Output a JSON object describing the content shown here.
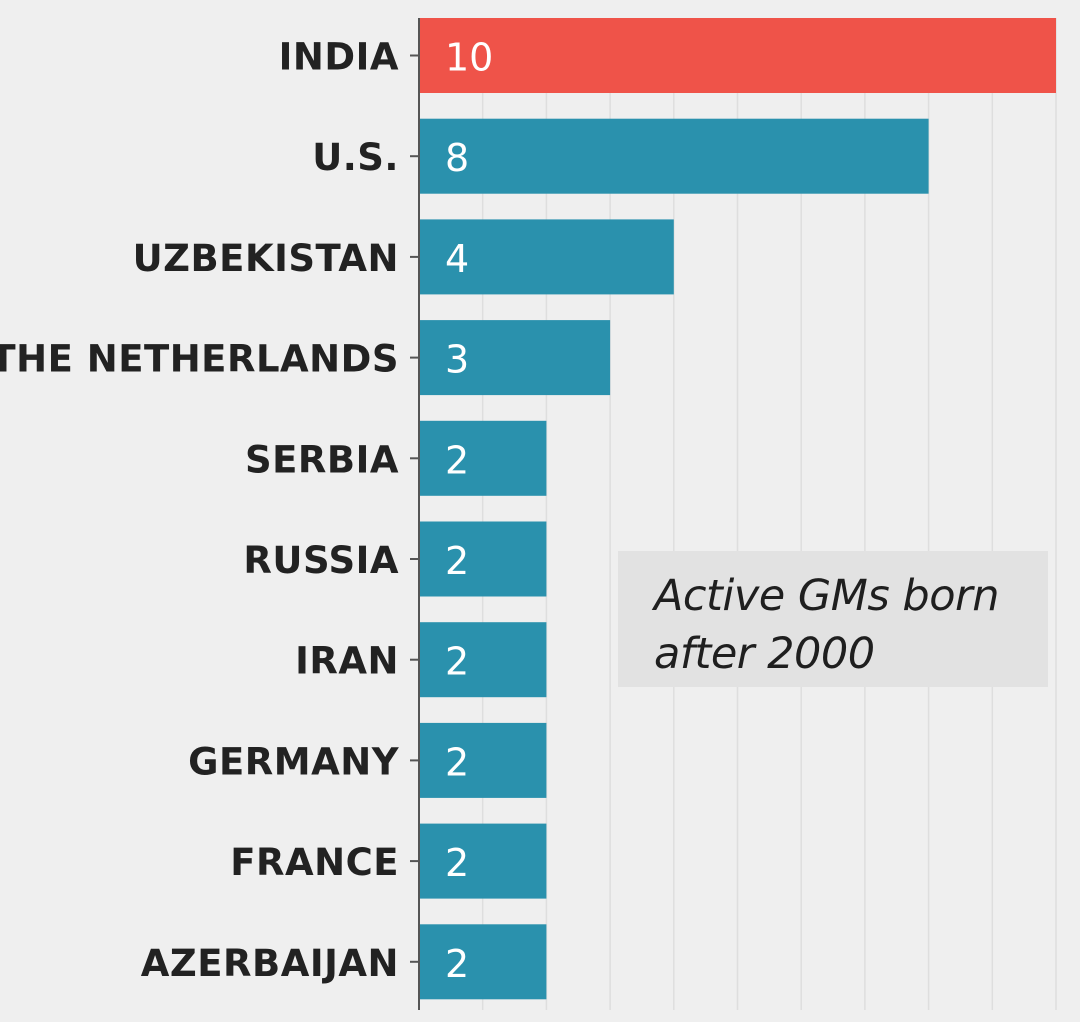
{
  "chart_data": {
    "type": "bar",
    "orientation": "horizontal",
    "categories": [
      "INDIA",
      "U.S.",
      "UZBEKISTAN",
      "THE NETHERLANDS",
      "SERBIA",
      "RUSSIA",
      "IRAN",
      "GERMANY",
      "FRANCE",
      "AZERBAIJAN"
    ],
    "values": [
      10,
      8,
      4,
      3,
      2,
      2,
      2,
      2,
      2,
      2
    ],
    "value_labels": [
      "10",
      "8",
      "4",
      "3",
      "2",
      "2",
      "2",
      "2",
      "2",
      "2"
    ],
    "highlight_category": "INDIA",
    "xlim": [
      0,
      10
    ],
    "grid": true,
    "annotation": {
      "line1": "Active GMs born",
      "line2": "after 2000"
    }
  },
  "colors": {
    "background": "#efefef",
    "bar": "#2a91ad",
    "highlight": "#ef5349",
    "grid": "#dedede",
    "axis": "#555555",
    "label": "#222222",
    "value_label": "#ffffff",
    "annotation_bg": "#e2e2e2"
  }
}
